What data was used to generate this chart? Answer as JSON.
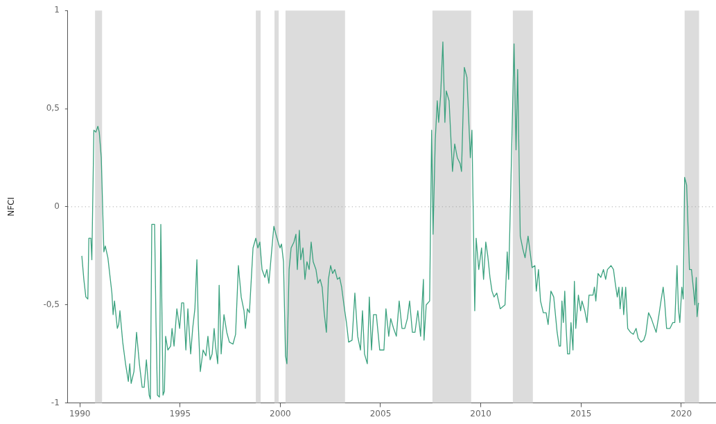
{
  "chart_data": {
    "type": "line",
    "ylabel": "NFCI",
    "color": "#3aa17e",
    "marker": "none",
    "line_style": "solid",
    "grid": false,
    "legend": false,
    "xlim": [
      1989.4,
      2021.7
    ],
    "xticks": [
      1990,
      1995,
      2000,
      2005,
      2010,
      2015,
      2020
    ],
    "ylim": [
      -1,
      1
    ],
    "yticks": [
      {
        "value": -1,
        "label": "-1"
      },
      {
        "value": -0.5,
        "label": "-0,5"
      },
      {
        "value": 0,
        "label": "0"
      },
      {
        "value": 0.5,
        "label": "0,5"
      },
      {
        "value": 1,
        "label": "1"
      }
    ],
    "ref_lines": [
      {
        "axis": "y",
        "value": 0,
        "color": "#999999",
        "line_style": "dotted"
      }
    ],
    "bands": [
      {
        "axis": "x",
        "from": 1990.76,
        "to": 1991.11,
        "color": "#dcdcdc"
      },
      {
        "axis": "x",
        "from": 1998.78,
        "to": 1999.02,
        "color": "#dcdcdc"
      },
      {
        "axis": "x",
        "from": 1999.71,
        "to": 1999.92,
        "color": "#dcdcdc"
      },
      {
        "axis": "x",
        "from": 2000.26,
        "to": 2003.23,
        "color": "#dcdcdc"
      },
      {
        "axis": "x",
        "from": 2007.59,
        "to": 2009.52,
        "color": "#dcdcdc"
      },
      {
        "axis": "x",
        "from": 2011.6,
        "to": 2012.6,
        "color": "#dcdcdc"
      },
      {
        "axis": "x",
        "from": 2020.17,
        "to": 2020.89,
        "color": "#dcdcdc"
      }
    ],
    "x": [
      1990.1,
      1990.2,
      1990.3,
      1990.4,
      1990.45,
      1990.55,
      1990.6,
      1990.7,
      1990.8,
      1990.9,
      1990.97,
      1991.07,
      1991.2,
      1991.27,
      1991.4,
      1991.6,
      1991.66,
      1991.73,
      1991.87,
      1991.94,
      1992.0,
      1992.14,
      1992.28,
      1992.42,
      1992.49,
      1992.56,
      1992.7,
      1992.83,
      1992.97,
      1993.11,
      1993.21,
      1993.32,
      1993.46,
      1993.52,
      1993.59,
      1993.73,
      1993.8,
      1993.87,
      1993.97,
      1994.04,
      1994.15,
      1994.22,
      1994.28,
      1994.39,
      1994.53,
      1994.6,
      1994.7,
      1994.84,
      1994.98,
      1995.08,
      1995.18,
      1995.29,
      1995.39,
      1995.46,
      1995.53,
      1995.63,
      1995.74,
      1995.84,
      1995.91,
      1996.01,
      1996.15,
      1996.29,
      1996.39,
      1996.5,
      1996.6,
      1996.7,
      1996.77,
      1996.88,
      1996.95,
      1997.05,
      1997.19,
      1997.33,
      1997.46,
      1997.64,
      1997.77,
      1997.91,
      1998.05,
      1998.19,
      1998.26,
      1998.36,
      1998.46,
      1998.64,
      1998.78,
      1998.88,
      1998.98,
      1999.09,
      1999.23,
      1999.33,
      1999.43,
      1999.6,
      1999.68,
      1999.78,
      1999.92,
      1999.99,
      2000.06,
      2000.16,
      2000.26,
      2000.33,
      2000.44,
      2000.54,
      2000.68,
      2000.78,
      2000.85,
      2000.95,
      2001.02,
      2001.13,
      2001.23,
      2001.33,
      2001.44,
      2001.54,
      2001.64,
      2001.78,
      2001.88,
      2001.99,
      2002.09,
      2002.19,
      2002.3,
      2002.4,
      2002.51,
      2002.61,
      2002.72,
      2002.85,
      2002.96,
      2003.06,
      2003.2,
      2003.3,
      2003.41,
      2003.58,
      2003.72,
      2003.86,
      2004.0,
      2004.1,
      2004.2,
      2004.34,
      2004.44,
      2004.55,
      2004.65,
      2004.79,
      2004.96,
      2005.17,
      2005.27,
      2005.41,
      2005.51,
      2005.65,
      2005.79,
      2005.93,
      2006.07,
      2006.21,
      2006.34,
      2006.45,
      2006.59,
      2006.72,
      2006.86,
      2007.0,
      2007.07,
      2007.14,
      2007.17,
      2007.28,
      2007.45,
      2007.55,
      2007.62,
      2007.73,
      2007.83,
      2007.9,
      2008.0,
      2008.11,
      2008.21,
      2008.28,
      2008.42,
      2008.59,
      2008.7,
      2008.83,
      2008.97,
      2009.04,
      2009.18,
      2009.31,
      2009.48,
      2009.56,
      2009.7,
      2009.77,
      2009.9,
      2010.04,
      2010.14,
      2010.25,
      2010.35,
      2010.46,
      2010.56,
      2010.66,
      2010.8,
      2010.97,
      2011.21,
      2011.32,
      2011.39,
      2011.49,
      2011.66,
      2011.76,
      2011.84,
      2011.97,
      2012.11,
      2012.21,
      2012.36,
      2012.46,
      2012.56,
      2012.7,
      2012.77,
      2012.88,
      2012.98,
      2013.12,
      2013.26,
      2013.36,
      2013.5,
      2013.64,
      2013.81,
      2013.91,
      2013.98,
      2014.05,
      2014.12,
      2014.19,
      2014.26,
      2014.33,
      2014.43,
      2014.5,
      2014.6,
      2014.67,
      2014.74,
      2014.87,
      2014.98,
      2015.05,
      2015.19,
      2015.3,
      2015.4,
      2015.6,
      2015.67,
      2015.74,
      2015.85,
      2015.99,
      2016.12,
      2016.23,
      2016.32,
      2016.5,
      2016.62,
      2016.71,
      2016.81,
      2016.89,
      2016.95,
      2017.06,
      2017.13,
      2017.23,
      2017.33,
      2017.47,
      2017.61,
      2017.75,
      2017.85,
      2017.99,
      2018.13,
      2018.23,
      2018.37,
      2018.51,
      2018.61,
      2018.75,
      2018.89,
      2018.99,
      2019.1,
      2019.17,
      2019.27,
      2019.44,
      2019.58,
      2019.68,
      2019.79,
      2019.86,
      2019.93,
      2020.03,
      2020.1,
      2020.17,
      2020.27,
      2020.41,
      2020.51,
      2020.62,
      2020.68,
      2020.75,
      2020.79,
      2020.86
    ],
    "values": [
      -0.25,
      -0.37,
      -0.46,
      -0.47,
      -0.16,
      -0.16,
      -0.27,
      0.39,
      0.38,
      0.41,
      0.38,
      0.25,
      -0.23,
      -0.2,
      -0.26,
      -0.44,
      -0.55,
      -0.48,
      -0.62,
      -0.6,
      -0.53,
      -0.69,
      -0.8,
      -0.89,
      -0.8,
      -0.9,
      -0.84,
      -0.64,
      -0.8,
      -0.92,
      -0.92,
      -0.78,
      -0.96,
      -0.98,
      -0.09,
      -0.09,
      -0.59,
      -0.96,
      -0.97,
      -0.09,
      -0.96,
      -0.94,
      -0.66,
      -0.73,
      -0.71,
      -0.62,
      -0.71,
      -0.52,
      -0.62,
      -0.49,
      -0.49,
      -0.73,
      -0.52,
      -0.64,
      -0.75,
      -0.62,
      -0.52,
      -0.27,
      -0.6,
      -0.84,
      -0.73,
      -0.76,
      -0.66,
      -0.78,
      -0.75,
      -0.62,
      -0.71,
      -0.8,
      -0.4,
      -0.75,
      -0.55,
      -0.64,
      -0.69,
      -0.7,
      -0.65,
      -0.3,
      -0.46,
      -0.53,
      -0.62,
      -0.52,
      -0.54,
      -0.21,
      -0.16,
      -0.21,
      -0.18,
      -0.32,
      -0.36,
      -0.32,
      -0.39,
      -0.19,
      -0.1,
      -0.14,
      -0.19,
      -0.21,
      -0.19,
      -0.28,
      -0.76,
      -0.8,
      -0.32,
      -0.21,
      -0.18,
      -0.14,
      -0.32,
      -0.12,
      -0.27,
      -0.21,
      -0.37,
      -0.28,
      -0.32,
      -0.18,
      -0.28,
      -0.32,
      -0.39,
      -0.37,
      -0.41,
      -0.54,
      -0.64,
      -0.37,
      -0.3,
      -0.34,
      -0.32,
      -0.37,
      -0.36,
      -0.41,
      -0.52,
      -0.59,
      -0.69,
      -0.68,
      -0.44,
      -0.66,
      -0.73,
      -0.53,
      -0.75,
      -0.8,
      -0.46,
      -0.73,
      -0.55,
      -0.55,
      -0.73,
      -0.73,
      -0.52,
      -0.66,
      -0.57,
      -0.62,
      -0.66,
      -0.48,
      -0.62,
      -0.62,
      -0.57,
      -0.48,
      -0.64,
      -0.64,
      -0.53,
      -0.66,
      -0.5,
      -0.37,
      -0.68,
      -0.5,
      -0.48,
      0.39,
      -0.14,
      0.34,
      0.54,
      0.43,
      0.57,
      0.84,
      0.43,
      0.59,
      0.54,
      0.18,
      0.32,
      0.25,
      0.22,
      0.18,
      0.71,
      0.66,
      0.25,
      0.39,
      -0.53,
      -0.16,
      -0.32,
      -0.21,
      -0.37,
      -0.18,
      -0.25,
      -0.36,
      -0.43,
      -0.46,
      -0.44,
      -0.52,
      -0.5,
      -0.23,
      -0.37,
      0.06,
      0.83,
      0.29,
      0.7,
      -0.15,
      -0.22,
      -0.26,
      -0.15,
      -0.23,
      -0.31,
      -0.3,
      -0.43,
      -0.32,
      -0.48,
      -0.54,
      -0.54,
      -0.6,
      -0.43,
      -0.46,
      -0.64,
      -0.71,
      -0.71,
      -0.48,
      -0.59,
      -0.43,
      -0.62,
      -0.75,
      -0.75,
      -0.59,
      -0.73,
      -0.38,
      -0.62,
      -0.45,
      -0.53,
      -0.48,
      -0.53,
      -0.59,
      -0.45,
      -0.45,
      -0.41,
      -0.48,
      -0.34,
      -0.36,
      -0.32,
      -0.37,
      -0.32,
      -0.3,
      -0.32,
      -0.39,
      -0.46,
      -0.41,
      -0.52,
      -0.41,
      -0.55,
      -0.41,
      -0.62,
      -0.64,
      -0.65,
      -0.62,
      -0.67,
      -0.69,
      -0.68,
      -0.65,
      -0.54,
      -0.57,
      -0.6,
      -0.64,
      -0.55,
      -0.48,
      -0.41,
      -0.48,
      -0.62,
      -0.62,
      -0.59,
      -0.59,
      -0.3,
      -0.52,
      -0.59,
      -0.41,
      -0.47,
      0.15,
      0.11,
      -0.32,
      -0.32,
      -0.43,
      -0.5,
      -0.36,
      -0.56,
      -0.49
    ]
  }
}
